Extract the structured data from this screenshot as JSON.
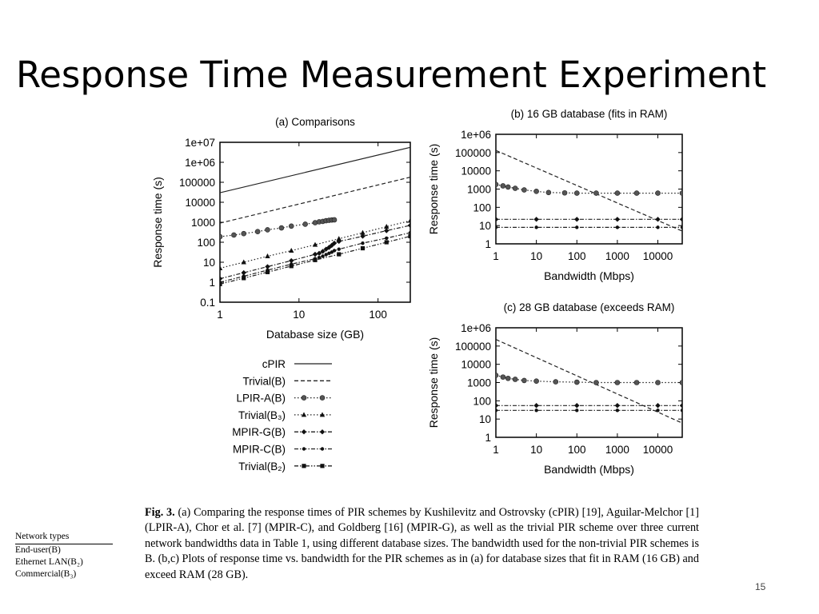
{
  "slide": {
    "title": "Response Time Measurement Experiment",
    "page_number": "15"
  },
  "network_table": {
    "header": "Network types",
    "rows": [
      "End-user(B)",
      "Ethernet LAN(B₂)",
      "Commercial(B₃)"
    ]
  },
  "caption": {
    "fig_label": "Fig. 3.",
    "text": " (a) Comparing the response times of PIR schemes by Kushilevitz and Ostrovsky (cPIR) [19], Aguilar-Melchor [1] (LPIR-A), Chor et al. [7] (MPIR-C), and Goldberg [16] (MPIR-G), as well as the trivial PIR scheme over three current network bandwidths data in Table 1, using different database sizes. The bandwidth used for the non-trivial PIR schemes is B. (b,c) Plots of response time vs. bandwidth for the PIR schemes as in (a) for database sizes that fit in RAM (16 GB) and exceed RAM (28 GB)."
  },
  "legend": [
    {
      "name": "cPIR",
      "dash": "solid",
      "marker": "none"
    },
    {
      "name": "Trivial(B)",
      "dash": "dash",
      "marker": "none"
    },
    {
      "name": "LPIR-A(B)",
      "dash": "dot",
      "marker": "circle"
    },
    {
      "name": "Trivial(B₃)",
      "dash": "dot",
      "marker": "triangle"
    },
    {
      "name": "MPIR-G(B)",
      "dash": "dashdot",
      "marker": "diamond"
    },
    {
      "name": "MPIR-C(B)",
      "dash": "dashdot",
      "marker": "star"
    },
    {
      "name": "Trivial(B₂)",
      "dash": "dashdotdot",
      "marker": "square"
    }
  ],
  "chart_data": [
    {
      "id": "a",
      "type": "line",
      "title": "(a) Comparisons",
      "xlabel": "Database size (GB)",
      "ylabel": "Response time (s)",
      "xscale": "log",
      "yscale": "log",
      "xlim": [
        1,
        256
      ],
      "ylim": [
        0.1,
        10000000
      ],
      "xticks": [
        {
          "v": 1,
          "label": "1"
        },
        {
          "v": 10,
          "label": "10"
        },
        {
          "v": 100,
          "label": "100"
        }
      ],
      "yticks": [
        {
          "v": 0.1,
          "label": "0.1"
        },
        {
          "v": 1,
          "label": "1"
        },
        {
          "v": 10,
          "label": "10"
        },
        {
          "v": 100,
          "label": "100"
        },
        {
          "v": 1000,
          "label": "1000"
        },
        {
          "v": 10000,
          "label": "10000"
        },
        {
          "v": 100000,
          "label": "100000"
        },
        {
          "v": 1000000,
          "label": "1e+06"
        },
        {
          "v": 10000000,
          "label": "1e+07"
        }
      ],
      "series": [
        {
          "name": "cPIR",
          "points": [
            [
              1,
              30000
            ],
            [
              256,
              5600000
            ]
          ]
        },
        {
          "name": "Trivial(B)",
          "points": [
            [
              1,
              900
            ],
            [
              256,
              180000
            ]
          ]
        },
        {
          "name": "LPIR-A(B)",
          "points": [
            [
              1,
              190
            ],
            [
              1.5,
              230
            ],
            [
              2,
              270
            ],
            [
              3,
              340
            ],
            [
              4,
              420
            ],
            [
              6,
              520
            ],
            [
              8,
              640
            ],
            [
              12,
              800
            ],
            [
              16,
              950
            ],
            [
              18,
              1050
            ],
            [
              20,
              1100
            ],
            [
              22,
              1200
            ],
            [
              24,
              1250
            ],
            [
              26,
              1300
            ],
            [
              28,
              1320
            ]
          ]
        },
        {
          "name": "Trivial(B₃)",
          "points": [
            [
              1,
              5
            ],
            [
              2,
              10
            ],
            [
              4,
              20
            ],
            [
              8,
              38
            ],
            [
              16,
              75
            ],
            [
              32,
              150
            ],
            [
              64,
              300
            ],
            [
              128,
              600
            ],
            [
              256,
              1200
            ]
          ]
        },
        {
          "name": "MPIR-G(B)",
          "points": [
            [
              1,
              1.5
            ],
            [
              2,
              3
            ],
            [
              4,
              6
            ],
            [
              8,
              12
            ],
            [
              16,
              25
            ],
            [
              18,
              28
            ],
            [
              20,
              35
            ],
            [
              22,
              45
            ],
            [
              24,
              55
            ],
            [
              26,
              70
            ],
            [
              28,
              90
            ],
            [
              32,
              110
            ],
            [
              64,
              200
            ],
            [
              128,
              380
            ],
            [
              256,
              700
            ]
          ]
        },
        {
          "name": "MPIR-C(B)",
          "points": [
            [
              1,
              1
            ],
            [
              2,
              2
            ],
            [
              4,
              4
            ],
            [
              8,
              8
            ],
            [
              16,
              15
            ],
            [
              18,
              17
            ],
            [
              20,
              20
            ],
            [
              22,
              24
            ],
            [
              24,
              28
            ],
            [
              26,
              32
            ],
            [
              28,
              38
            ],
            [
              32,
              45
            ],
            [
              64,
              90
            ],
            [
              128,
              160
            ],
            [
              256,
              300
            ]
          ]
        },
        {
          "name": "Trivial(B₂)",
          "points": [
            [
              1,
              0.8
            ],
            [
              2,
              1.6
            ],
            [
              4,
              3.2
            ],
            [
              8,
              6.4
            ],
            [
              16,
              12.8
            ],
            [
              32,
              25
            ],
            [
              64,
              50
            ],
            [
              128,
              100
            ],
            [
              256,
              200
            ]
          ]
        }
      ]
    },
    {
      "id": "b",
      "type": "line",
      "title": "(b) 16 GB database (fits in RAM)",
      "xlabel": "Bandwidth (Mbps)",
      "ylabel": "Response time (s)",
      "xscale": "log",
      "yscale": "log",
      "xlim": [
        1,
        40000
      ],
      "ylim": [
        1,
        1000000
      ],
      "xticks": [
        {
          "v": 1,
          "label": "1"
        },
        {
          "v": 10,
          "label": "10"
        },
        {
          "v": 100,
          "label": "100"
        },
        {
          "v": 1000,
          "label": "1000"
        },
        {
          "v": 10000,
          "label": "10000"
        }
      ],
      "yticks": [
        {
          "v": 1,
          "label": "1"
        },
        {
          "v": 10,
          "label": "10"
        },
        {
          "v": 100,
          "label": "100"
        },
        {
          "v": 1000,
          "label": "1000"
        },
        {
          "v": 10000,
          "label": "10000"
        },
        {
          "v": 100000,
          "label": "100000"
        },
        {
          "v": 1000000,
          "label": "1e+06"
        }
      ],
      "series": [
        {
          "name": "cPIR",
          "points": [
            [
              1,
              1000000
            ],
            [
              40000,
              1000000
            ]
          ]
        },
        {
          "name": "Trivial(B)",
          "points": [
            [
              1,
              130000
            ],
            [
              40000,
              5
            ]
          ]
        },
        {
          "name": "LPIR-A(B)",
          "points": [
            [
              1,
              1800
            ],
            [
              1.5,
              1500
            ],
            [
              2,
              1300
            ],
            [
              3,
              1100
            ],
            [
              5,
              900
            ],
            [
              10,
              750
            ],
            [
              20,
              650
            ],
            [
              50,
              620
            ],
            [
              100,
              600
            ],
            [
              300,
              600
            ],
            [
              1000,
              600
            ],
            [
              3000,
              600
            ],
            [
              10000,
              600
            ],
            [
              40000,
              600
            ]
          ]
        },
        {
          "name": "MPIR-G(B)",
          "points": [
            [
              1,
              22
            ],
            [
              10,
              22
            ],
            [
              100,
              22
            ],
            [
              1000,
              22
            ],
            [
              10000,
              22
            ],
            [
              40000,
              22
            ]
          ]
        },
        {
          "name": "MPIR-C(B)",
          "points": [
            [
              1,
              8
            ],
            [
              10,
              8
            ],
            [
              100,
              8
            ],
            [
              1000,
              8
            ],
            [
              10000,
              8
            ],
            [
              40000,
              8
            ]
          ]
        }
      ]
    },
    {
      "id": "c",
      "type": "line",
      "title": "(c) 28 GB database (exceeds RAM)",
      "xlabel": "Bandwidth (Mbps)",
      "ylabel": "Response time (s)",
      "xscale": "log",
      "yscale": "log",
      "xlim": [
        1,
        40000
      ],
      "ylim": [
        1,
        1000000
      ],
      "xticks": [
        {
          "v": 1,
          "label": "1"
        },
        {
          "v": 10,
          "label": "10"
        },
        {
          "v": 100,
          "label": "100"
        },
        {
          "v": 1000,
          "label": "1000"
        },
        {
          "v": 10000,
          "label": "10000"
        }
      ],
      "yticks": [
        {
          "v": 1,
          "label": "1"
        },
        {
          "v": 10,
          "label": "10"
        },
        {
          "v": 100,
          "label": "100"
        },
        {
          "v": 1000,
          "label": "1000"
        },
        {
          "v": 10000,
          "label": "10000"
        },
        {
          "v": 100000,
          "label": "100000"
        },
        {
          "v": 1000000,
          "label": "1e+06"
        }
      ],
      "series": [
        {
          "name": "cPIR",
          "points": [
            [
              1,
              1000000
            ],
            [
              40000,
              1000000
            ]
          ]
        },
        {
          "name": "Trivial(B)",
          "points": [
            [
              1,
              230000
            ],
            [
              40000,
              6
            ]
          ]
        },
        {
          "name": "LPIR-A(B)",
          "points": [
            [
              1,
              2500
            ],
            [
              1.5,
              2000
            ],
            [
              2,
              1700
            ],
            [
              3,
              1500
            ],
            [
              5,
              1300
            ],
            [
              10,
              1200
            ],
            [
              30,
              1100
            ],
            [
              100,
              1050
            ],
            [
              300,
              1000
            ],
            [
              1000,
              1000
            ],
            [
              3000,
              1000
            ],
            [
              10000,
              1000
            ],
            [
              40000,
              1000
            ]
          ]
        },
        {
          "name": "MPIR-G(B)",
          "points": [
            [
              1,
              55
            ],
            [
              10,
              55
            ],
            [
              100,
              55
            ],
            [
              1000,
              55
            ],
            [
              10000,
              55
            ],
            [
              40000,
              55
            ]
          ]
        },
        {
          "name": "MPIR-C(B)",
          "points": [
            [
              1,
              30
            ],
            [
              10,
              30
            ],
            [
              100,
              30
            ],
            [
              1000,
              30
            ],
            [
              10000,
              30
            ],
            [
              40000,
              30
            ]
          ]
        }
      ]
    }
  ]
}
